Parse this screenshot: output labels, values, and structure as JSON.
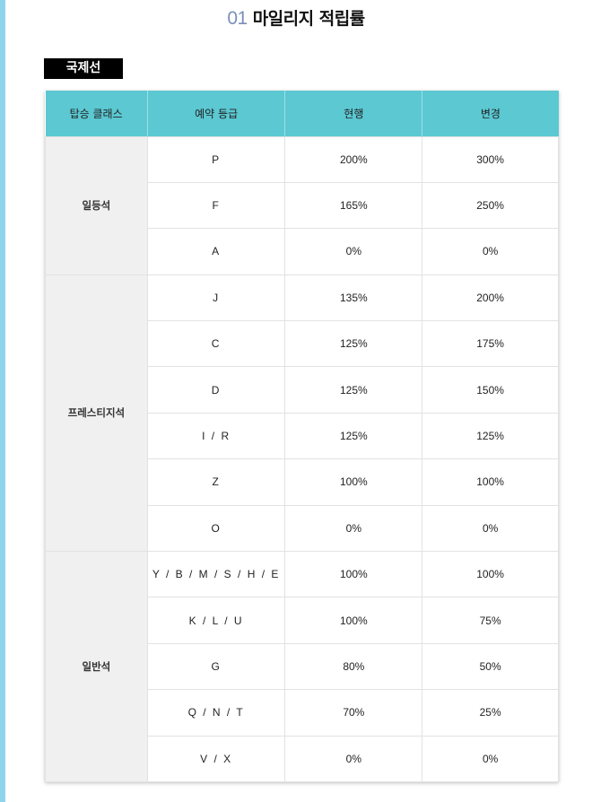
{
  "title": {
    "number": "01",
    "text": "마일리지 적립률"
  },
  "section_label": "국제선",
  "table": {
    "headers": [
      "탑승 클래스",
      "예약 등급",
      "현행",
      "변경"
    ],
    "groups": [
      {
        "class": "일등석",
        "rows": [
          [
            "P",
            "200%",
            "300%"
          ],
          [
            "F",
            "165%",
            "250%"
          ],
          [
            "A",
            "0%",
            "0%"
          ]
        ]
      },
      {
        "class": "프레스티지석",
        "rows": [
          [
            "J",
            "135%",
            "200%"
          ],
          [
            "C",
            "125%",
            "175%"
          ],
          [
            "D",
            "125%",
            "150%"
          ],
          [
            "I / R",
            "125%",
            "125%"
          ],
          [
            "Z",
            "100%",
            "100%"
          ],
          [
            "O",
            "0%",
            "0%"
          ]
        ]
      },
      {
        "class": "일반석",
        "rows": [
          [
            "Y / B / M / S / H / E",
            "100%",
            "100%"
          ],
          [
            "K / L / U",
            "100%",
            "75%"
          ],
          [
            "G",
            "80%",
            "50%"
          ],
          [
            "Q / N / T",
            "70%",
            "25%"
          ],
          [
            "V / X",
            "0%",
            "0%"
          ]
        ]
      }
    ]
  },
  "colors": {
    "header_bg": "#5bc8d2",
    "class_bg": "#f0f0f0",
    "badge_bg": "#000000"
  }
}
